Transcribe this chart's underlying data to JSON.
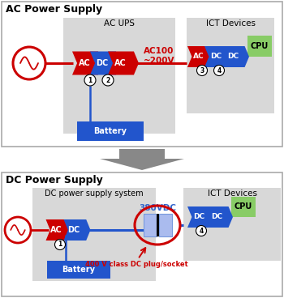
{
  "title_ac": "AC Power Supply",
  "title_dc": "DC Power Supply",
  "ac_ups_label": "AC UPS",
  "dc_sys_label": "DC power supply system",
  "ict_label": "ICT Devices",
  "ac_voltage_label": "AC100\n~200V",
  "dc_voltage_label": "380VDC",
  "plug_label": "400 V class DC plug/socket",
  "battery_label": "Battery",
  "cpu_label": "CPU",
  "color_red": "#cc0000",
  "color_blue": "#2255cc",
  "color_blue_light": "#7799dd",
  "color_blue_lighter": "#aabbee",
  "color_green": "#88cc66",
  "color_gray_bg": "#d8d8d8",
  "color_white": "#ffffff",
  "color_black": "#000000",
  "color_arrow_gray": "#888888",
  "bg_color": "#ffffff",
  "border_color": "#aaaaaa"
}
